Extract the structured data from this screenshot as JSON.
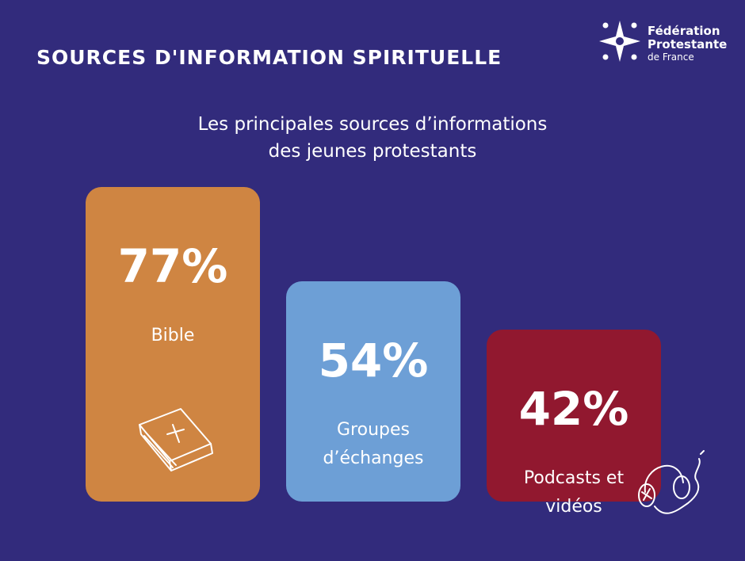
{
  "header": {
    "title": "SOURCES D'INFORMATION SPIRITUELLE",
    "subtitle_lines": [
      "Les principales sources d’informations",
      "des jeunes protestants"
    ]
  },
  "logo": {
    "icon": "star-cross-icon",
    "line1": "Fédération",
    "line2": "Protestante",
    "line3": "de France"
  },
  "colors": {
    "background": "#322b7c",
    "bible": "#cf8542",
    "groupes": "#6d9fd6",
    "podcasts": "#91182f"
  },
  "chart_data": {
    "type": "bar",
    "categories": [
      "Bible",
      "Groupes d’échanges",
      "Podcasts et vidéos"
    ],
    "values": [
      77,
      54,
      42
    ],
    "value_labels": [
      "77%",
      "54%",
      "42%"
    ],
    "label_lines": [
      [
        "Bible"
      ],
      [
        "Groupes",
        "d’échanges"
      ],
      [
        "Podcasts et",
        "vidéos"
      ]
    ],
    "icons": [
      "bible-icon",
      "",
      "headphones-icon"
    ],
    "colors": [
      "#cf8542",
      "#6d9fd6",
      "#91182f"
    ],
    "title": "Les principales sources d’informations des jeunes protestants",
    "unit": "%"
  }
}
